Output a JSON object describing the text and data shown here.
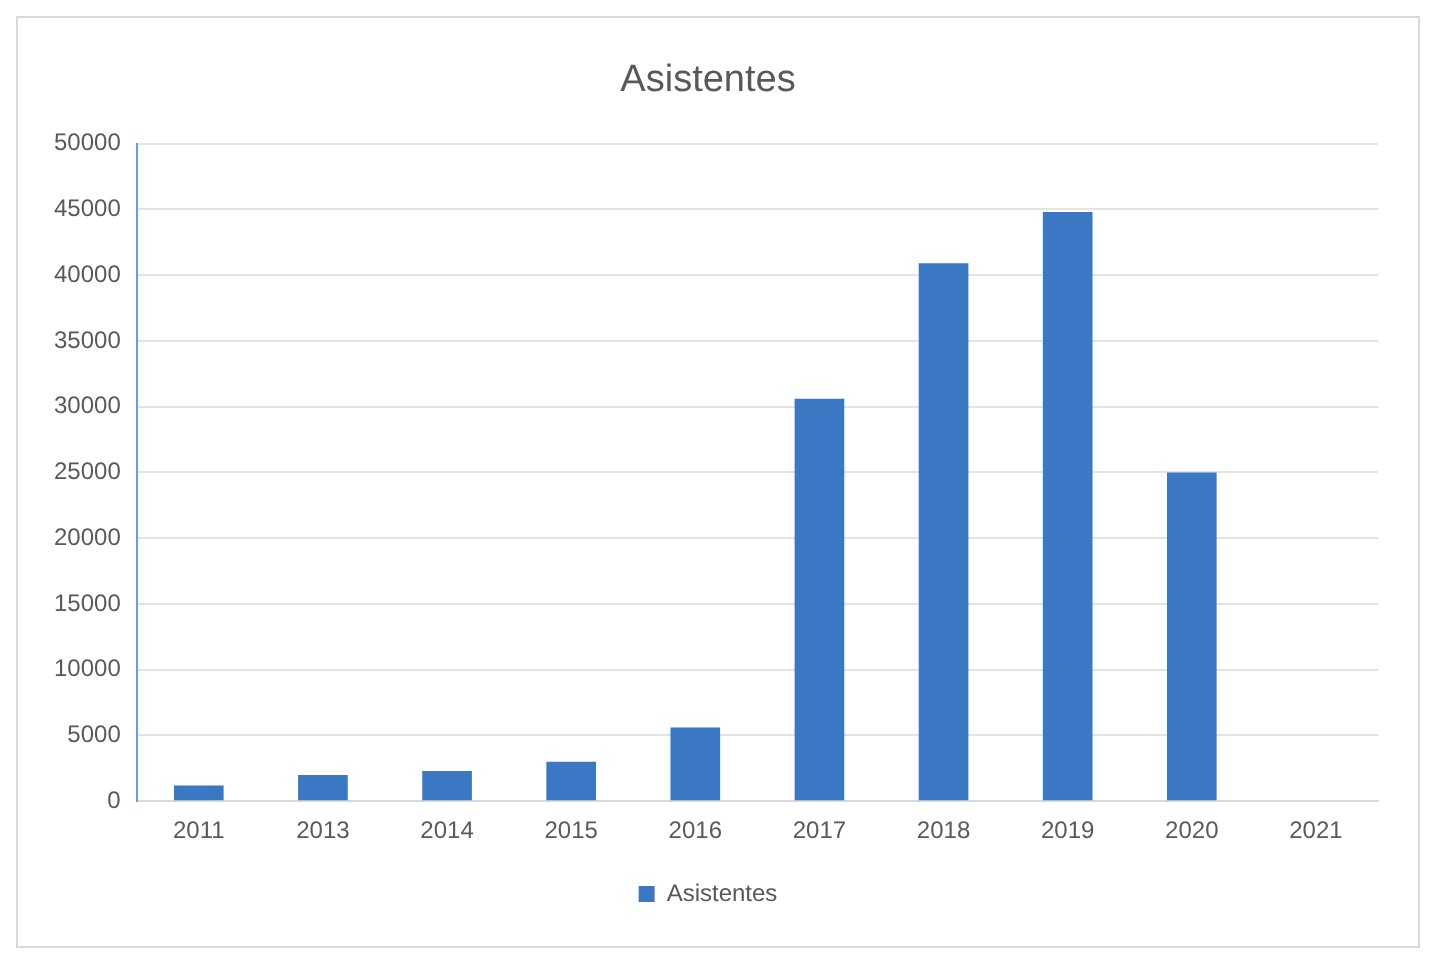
{
  "chart_data": {
    "type": "bar",
    "title": "Asistentes",
    "categories": [
      "2011",
      "2013",
      "2014",
      "2015",
      "2016",
      "2017",
      "2018",
      "2019",
      "2020",
      "2021"
    ],
    "series": [
      {
        "name": "Asistentes",
        "color": "#3a78c3",
        "values": [
          1200,
          2000,
          2300,
          3000,
          5600,
          30600,
          40900,
          44800,
          25000,
          null
        ]
      }
    ],
    "ylim": [
      0,
      50000
    ],
    "yticks": [
      0,
      5000,
      10000,
      15000,
      20000,
      25000,
      30000,
      35000,
      40000,
      45000,
      50000
    ],
    "grid": "y",
    "legend": "bottom"
  }
}
